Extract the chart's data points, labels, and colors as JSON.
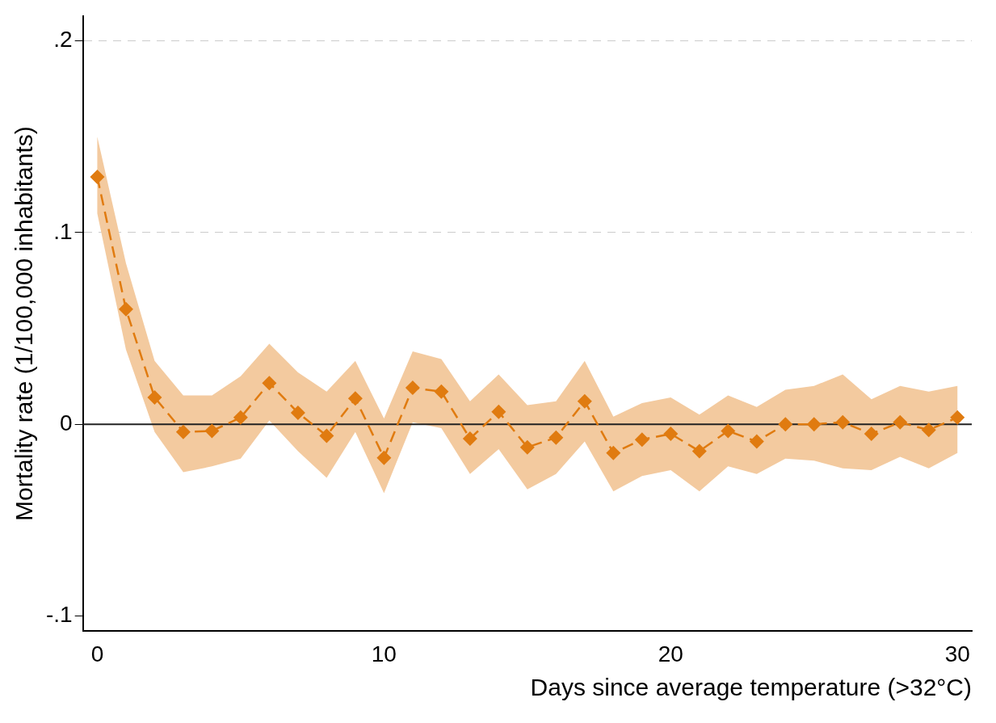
{
  "chart_data": {
    "type": "line",
    "xlabel": "Days since average temperature (>32°C)",
    "ylabel": "Mortality rate (1/100,000 inhabitants)",
    "x": [
      0,
      1,
      2,
      3,
      4,
      5,
      6,
      7,
      8,
      9,
      10,
      11,
      12,
      13,
      14,
      15,
      16,
      17,
      18,
      19,
      20,
      21,
      22,
      23,
      24,
      25,
      26,
      27,
      28,
      29,
      30
    ],
    "series": [
      {
        "color": "#e07b10",
        "values": [
          0.129,
          0.06,
          0.014,
          -0.004,
          -0.0035,
          0.0035,
          0.0215,
          0.006,
          -0.006,
          0.0135,
          -0.0175,
          0.019,
          0.017,
          -0.0075,
          0.0065,
          -0.012,
          -0.007,
          0.012,
          -0.015,
          -0.008,
          -0.005,
          -0.014,
          -0.0035,
          -0.009,
          0.0,
          0.0,
          0.001,
          -0.005,
          0.001,
          -0.003,
          0.0035
        ],
        "lower": [
          0.11,
          0.039,
          -0.004,
          -0.025,
          -0.022,
          -0.018,
          0.002,
          -0.014,
          -0.028,
          -0.004,
          -0.036,
          0.001,
          -0.002,
          -0.026,
          -0.013,
          -0.034,
          -0.026,
          -0.009,
          -0.035,
          -0.027,
          -0.024,
          -0.035,
          -0.022,
          -0.026,
          -0.018,
          -0.019,
          -0.023,
          -0.024,
          -0.017,
          -0.023,
          -0.015
        ],
        "upper": [
          0.15,
          0.084,
          0.033,
          0.015,
          0.015,
          0.025,
          0.042,
          0.027,
          0.017,
          0.033,
          0.003,
          0.038,
          0.034,
          0.012,
          0.026,
          0.01,
          0.012,
          0.033,
          0.004,
          0.011,
          0.014,
          0.005,
          0.015,
          0.009,
          0.018,
          0.02,
          0.026,
          0.013,
          0.02,
          0.017,
          0.02
        ]
      }
    ],
    "xlim": [
      -0.5,
      30.5
    ],
    "xticks": [
      0,
      10,
      20,
      30
    ],
    "ylim": [
      -0.108,
      0.213
    ],
    "yticks": [
      {
        "value": -0.1,
        "label": "-.1"
      },
      0,
      {
        "value": 0.1,
        "label": ".1"
      },
      {
        "value": 0.2,
        "label": ".2"
      }
    ],
    "ref_lines": [
      {
        "axis": "y",
        "value": 0,
        "color": "#222222"
      }
    ],
    "grid": "y",
    "legend": false,
    "marker": "diamond",
    "line_style": "dashed"
  }
}
